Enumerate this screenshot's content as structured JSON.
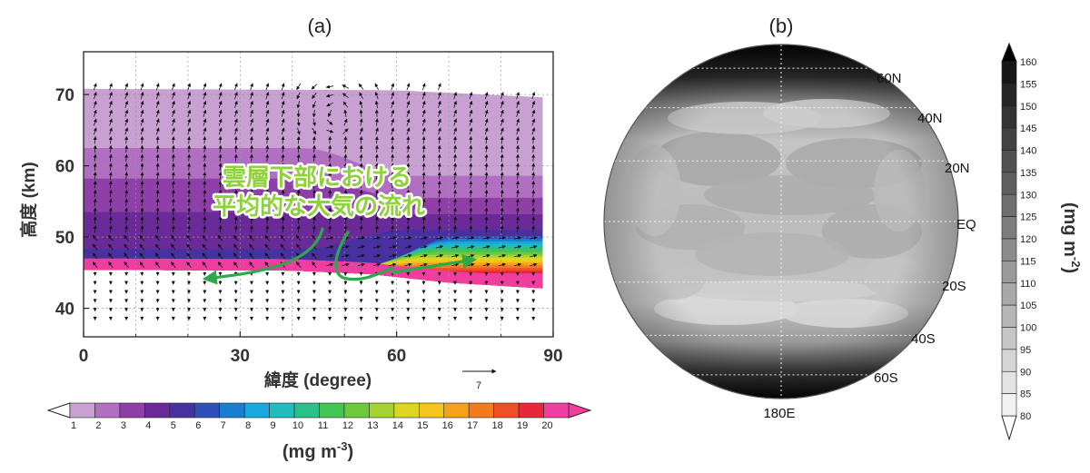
{
  "panel_a": {
    "label": "(a)",
    "annotation": {
      "line1": "雲層下部における",
      "line2": "平均的な大気の流れ"
    },
    "arrow_color": "#2ea84b",
    "reference_vector_label": "7"
  },
  "panel_b": {
    "label": "(b)",
    "map_labels": [
      "60N",
      "40N",
      "20N",
      "EQ",
      "20S",
      "40S",
      "60S",
      "180E"
    ]
  },
  "chart_data": [
    {
      "type": "heatmap",
      "xlabel": "緯度 (degree)",
      "ylabel": "高度 (km)",
      "xlim": [
        0,
        90
      ],
      "ylim": [
        36,
        76
      ],
      "xticks": [
        "0",
        "30",
        "60",
        "90"
      ],
      "yticks": [
        "40",
        "50",
        "60",
        "70"
      ],
      "vectors": true,
      "reference_vector": 7,
      "grid": true,
      "colorbar": {
        "orientation": "horizontal",
        "location": "bottom",
        "unit": "(mg m",
        "unit_exp": "-3",
        "unit_close": ")",
        "levels": [
          "1",
          "2",
          "3",
          "4",
          "5",
          "6",
          "7",
          "8",
          "9",
          "10",
          "11",
          "12",
          "13",
          "14",
          "15",
          "16",
          "17",
          "18",
          "19",
          "20"
        ],
        "colors": [
          "#c9a0d2",
          "#b16fc1",
          "#8e3fa8",
          "#6a2b99",
          "#4731a0",
          "#2f4fb8",
          "#1b7fd0",
          "#17a8de",
          "#20bcc0",
          "#2dbf88",
          "#45c456",
          "#6cc93a",
          "#a4d231",
          "#dbd61f",
          "#f6c51b",
          "#f6a11a",
          "#f47b1d",
          "#ef4f26",
          "#e8263c",
          "#f03ea0"
        ],
        "extend": "both"
      }
    },
    {
      "type": "heatmap",
      "projection": "orthographic",
      "center_longitude": "180E",
      "grid": true,
      "colorbar": {
        "orientation": "vertical",
        "location": "right",
        "unit": "(mg m",
        "unit_exp": "-2",
        "unit_close": ")",
        "levels": [
          "80",
          "85",
          "90",
          "95",
          "100",
          "105",
          "110",
          "115",
          "120",
          "125",
          "130",
          "135",
          "140",
          "145",
          "150",
          "155",
          "160"
        ],
        "extend": "both"
      }
    }
  ]
}
